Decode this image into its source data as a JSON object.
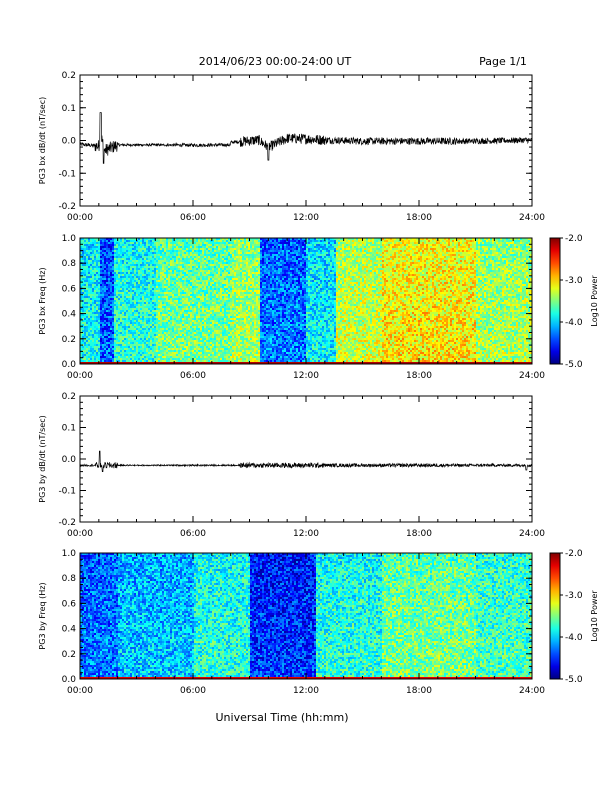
{
  "header": {
    "title": "2014/06/23  00:00-24:00 UT",
    "page": "Page 1/1"
  },
  "footer": {
    "xlabel": "Universal Time (hh:mm)"
  },
  "colorbar": {
    "label": "Log10 Power",
    "ticks": [
      "-2.0",
      "-3.0",
      "-4.0",
      "-5.0"
    ],
    "range": [
      -5.0,
      -2.0
    ]
  },
  "chart_data": [
    {
      "type": "line",
      "ylabel": "PG3 bx dB/dt (nT/sec)",
      "x_ticks": [
        "00:00",
        "06:00",
        "12:00",
        "18:00",
        "24:00"
      ],
      "y_ticks": [
        "0.2",
        "0.1",
        "0.0",
        "-0.1",
        "-0.2"
      ],
      "xlim": [
        0,
        24
      ],
      "ylim": [
        -0.2,
        0.2
      ],
      "series": [
        {
          "x": [
            0,
            1.0,
            1.1,
            1.3,
            2,
            4,
            6,
            8,
            9.5,
            10,
            11,
            12,
            13,
            15,
            18,
            21,
            23.9,
            24
          ],
          "y": [
            -0.005,
            -0.02,
            0.085,
            -0.06,
            -0.01,
            -0.01,
            -0.012,
            -0.01,
            0.01,
            -0.055,
            0.025,
            0.02,
            0.01,
            0.0,
            0.0,
            0.0,
            0.01,
            0.0
          ]
        }
      ]
    },
    {
      "type": "heatmap",
      "ylabel": "PG3 bx Freq (Hz)",
      "x_ticks": [
        "00:00",
        "06:00",
        "12:00",
        "18:00",
        "24:00"
      ],
      "y_ticks": [
        "1.0",
        "0.8",
        "0.6",
        "0.4",
        "0.2",
        "0.0"
      ],
      "xlim": [
        0,
        24
      ],
      "ylim": [
        0.0,
        1.0
      ]
    },
    {
      "type": "line",
      "ylabel": "PG3 by dB/dt (nT/sec)",
      "x_ticks": [
        "00:00",
        "06:00",
        "12:00",
        "18:00",
        "24:00"
      ],
      "y_ticks": [
        "0.2",
        "0.1",
        "0.0",
        "-0.1",
        "-0.2"
      ],
      "xlim": [
        0,
        24
      ],
      "ylim": [
        -0.2,
        0.2
      ],
      "series": [
        {
          "x": [
            0,
            0.5,
            1.0,
            1.1,
            2,
            4,
            6,
            9,
            12,
            13,
            18,
            23.5,
            23.8,
            24
          ],
          "y": [
            -0.02,
            -0.025,
            0.025,
            -0.04,
            -0.02,
            -0.025,
            -0.025,
            -0.02,
            -0.015,
            -0.015,
            -0.015,
            -0.02,
            -0.035,
            -0.015
          ]
        }
      ]
    },
    {
      "type": "heatmap",
      "ylabel": "PG3 by Freq (Hz)",
      "x_ticks": [
        "00:00",
        "06:00",
        "12:00",
        "18:00",
        "24:00"
      ],
      "y_ticks": [
        "1.0",
        "0.8",
        "0.6",
        "0.4",
        "0.2",
        "0.0"
      ],
      "xlim": [
        0,
        24
      ],
      "ylim": [
        0.0,
        1.0
      ]
    }
  ]
}
